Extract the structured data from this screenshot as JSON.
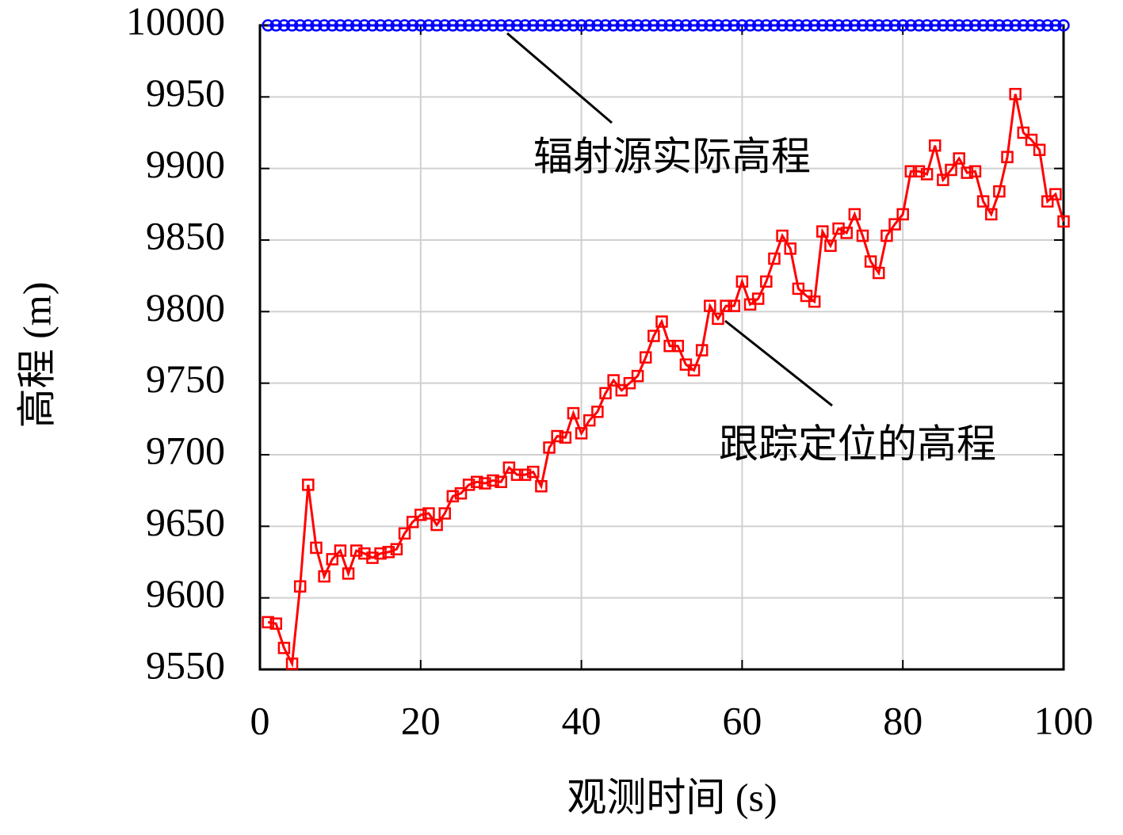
{
  "chart_data": {
    "type": "line",
    "x_label": "观测时间 (s)",
    "y_label": "高程 (m)",
    "x": [
      1,
      2,
      3,
      4,
      5,
      6,
      7,
      8,
      9,
      10,
      11,
      12,
      13,
      14,
      15,
      16,
      17,
      18,
      19,
      20,
      21,
      22,
      23,
      24,
      25,
      26,
      27,
      28,
      29,
      30,
      31,
      32,
      33,
      34,
      35,
      36,
      37,
      38,
      39,
      40,
      41,
      42,
      43,
      44,
      45,
      46,
      47,
      48,
      49,
      50,
      51,
      52,
      53,
      54,
      55,
      56,
      57,
      58,
      59,
      60,
      61,
      62,
      63,
      64,
      65,
      66,
      67,
      68,
      69,
      70,
      71,
      72,
      73,
      74,
      75,
      76,
      77,
      78,
      79,
      80,
      81,
      82,
      83,
      84,
      85,
      86,
      87,
      88,
      89,
      90,
      91,
      92,
      93,
      94,
      95,
      96,
      97,
      98,
      99,
      100
    ],
    "series": [
      {
        "name": "辐射源实际高程",
        "color": "#0000ff",
        "marker": "circle",
        "values": [
          10000,
          10000,
          10000,
          10000,
          10000,
          10000,
          10000,
          10000,
          10000,
          10000,
          10000,
          10000,
          10000,
          10000,
          10000,
          10000,
          10000,
          10000,
          10000,
          10000,
          10000,
          10000,
          10000,
          10000,
          10000,
          10000,
          10000,
          10000,
          10000,
          10000,
          10000,
          10000,
          10000,
          10000,
          10000,
          10000,
          10000,
          10000,
          10000,
          10000,
          10000,
          10000,
          10000,
          10000,
          10000,
          10000,
          10000,
          10000,
          10000,
          10000,
          10000,
          10000,
          10000,
          10000,
          10000,
          10000,
          10000,
          10000,
          10000,
          10000,
          10000,
          10000,
          10000,
          10000,
          10000,
          10000,
          10000,
          10000,
          10000,
          10000,
          10000,
          10000,
          10000,
          10000,
          10000,
          10000,
          10000,
          10000,
          10000,
          10000,
          10000,
          10000,
          10000,
          10000,
          10000,
          10000,
          10000,
          10000,
          10000,
          10000,
          10000,
          10000,
          10000,
          10000,
          10000,
          10000,
          10000,
          10000,
          10000,
          10000
        ]
      },
      {
        "name": "跟踪定位的高程",
        "color": "#ff0000",
        "marker": "square",
        "values": [
          9583,
          9582,
          9565,
          9554,
          9608,
          9679,
          9635,
          9615,
          9627,
          9633,
          9617,
          9633,
          9631,
          9628,
          9631,
          9632,
          9634,
          9645,
          9653,
          9658,
          9659,
          9651,
          9659,
          9671,
          9673,
          9679,
          9681,
          9680,
          9682,
          9681,
          9691,
          9686,
          9686,
          9688,
          9678,
          9705,
          9713,
          9712,
          9729,
          9715,
          9724,
          9730,
          9743,
          9752,
          9745,
          9750,
          9755,
          9768,
          9783,
          9793,
          9776,
          9776,
          9763,
          9759,
          9773,
          9804,
          9795,
          9804,
          9804,
          9821,
          9805,
          9809,
          9821,
          9837,
          9853,
          9844,
          9816,
          9811,
          9807,
          9856,
          9846,
          9858,
          9855,
          9868,
          9853,
          9835,
          9827,
          9853,
          9861,
          9868,
          9898,
          9898,
          9896,
          9916,
          9892,
          9899,
          9907,
          9897,
          9898,
          9877,
          9868,
          9884,
          9908,
          9952,
          9925,
          9920,
          9913,
          9877,
          9882,
          9863
        ]
      }
    ],
    "xlim": [
      0,
      100
    ],
    "xticks": [
      0,
      20,
      40,
      60,
      80,
      100
    ],
    "ylim": [
      9550,
      10000
    ],
    "yticks": [
      9550,
      9600,
      9650,
      9700,
      9750,
      9800,
      9850,
      9900,
      9950,
      10000
    ],
    "grid": true
  }
}
